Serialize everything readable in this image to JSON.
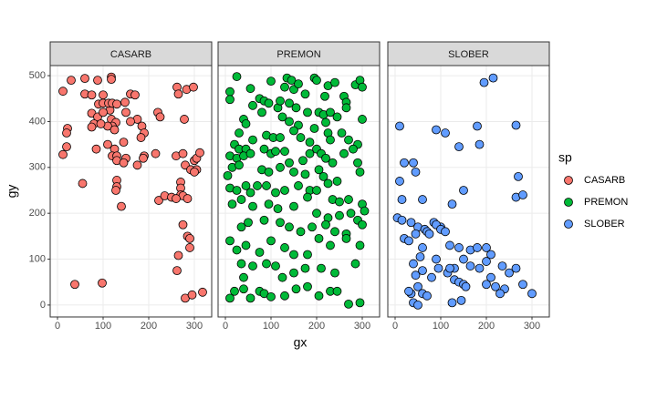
{
  "chart_data": {
    "type": "scatter",
    "x_label": "gx",
    "y_label": "gy",
    "legend_title": "sp",
    "grid": true,
    "legend_position": "right",
    "facet": true,
    "xlim": [
      -16,
      338
    ],
    "ylim": [
      -26,
      522
    ],
    "xticks": [
      0,
      100,
      200,
      300
    ],
    "yticks": [
      0,
      100,
      200,
      300,
      400,
      500
    ],
    "series": [
      {
        "name": "CASARB",
        "color": "#F8766D",
        "x": [
          12,
          30,
          60,
          60,
          88,
          118,
          118,
          22,
          20,
          20,
          12,
          55,
          38,
          98,
          75,
          100,
          115,
          90,
          100,
          112,
          120,
          130,
          75,
          88,
          100,
          118,
          128,
          120,
          110,
          125,
          80,
          75,
          95,
          148,
          150,
          160,
          170,
          175,
          160,
          185,
          190,
          183,
          190,
          188,
          85,
          110,
          125,
          120,
          130,
          130,
          150,
          145,
          145,
          175,
          130,
          130,
          128,
          140,
          220,
          225,
          215,
          262,
          265,
          283,
          298,
          278,
          260,
          275,
          280,
          292,
          300,
          305,
          312,
          305,
          300,
          270,
          270,
          270,
          275,
          285,
          222,
          235,
          250,
          260,
          275,
          285,
          290,
          290,
          265,
          262,
          280,
          295,
          318
        ],
        "y": [
          466,
          490,
          494,
          460,
          490,
          497,
          492,
          385,
          375,
          345,
          328,
          265,
          45,
          48,
          458,
          458,
          425,
          438,
          440,
          440,
          440,
          438,
          418,
          410,
          420,
          405,
          398,
          390,
          390,
          382,
          395,
          388,
          395,
          442,
          420,
          460,
          458,
          405,
          400,
          390,
          375,
          365,
          325,
          320,
          340,
          350,
          340,
          325,
          325,
          315,
          320,
          355,
          310,
          305,
          272,
          258,
          250,
          215,
          420,
          410,
          330,
          475,
          460,
          470,
          475,
          405,
          325,
          330,
          305,
          295,
          315,
          320,
          332,
          295,
          290,
          268,
          255,
          240,
          238,
          232,
          228,
          238,
          235,
          232,
          175,
          150,
          145,
          125,
          108,
          75,
          15,
          22,
          28
        ]
      },
      {
        "name": "PREMON",
        "color": "#00BA38",
        "x": [
          10,
          10,
          25,
          55,
          75,
          85,
          95,
          100,
          130,
          135,
          145,
          150,
          160,
          175,
          195,
          200,
          218,
          225,
          240,
          260,
          265,
          285,
          295,
          300,
          300,
          60,
          80,
          115,
          120,
          140,
          155,
          125,
          140,
          160,
          180,
          205,
          215,
          230,
          245,
          265,
          220,
          195,
          40,
          45,
          30,
          20,
          30,
          45,
          60,
          90,
          105,
          120,
          150,
          165,
          185,
          200,
          225,
          230,
          255,
          270,
          290,
          10,
          25,
          40,
          55,
          85,
          100,
          110,
          130,
          140,
          170,
          185,
          210,
          220,
          235,
          260,
          280,
          290,
          15,
          30,
          80,
          95,
          120,
          150,
          175,
          205,
          215,
          245,
          295,
          5,
          10,
          25,
          45,
          55,
          70,
          90,
          110,
          130,
          160,
          185,
          200,
          225,
          235,
          250,
          270,
          300,
          305,
          15,
          35,
          60,
          95,
          115,
          150,
          180,
          200,
          225,
          250,
          275,
          290,
          300,
          35,
          50,
          85,
          120,
          140,
          165,
          190,
          220,
          240,
          265,
          10,
          25,
          45,
          75,
          100,
          130,
          150,
          180,
          205,
          230,
          265,
          295,
          35,
          40,
          60,
          90,
          110,
          125,
          150,
          175,
          210,
          240,
          285,
          20,
          10,
          40,
          55,
          75,
          85,
          100,
          130,
          155,
          180,
          205,
          230,
          245,
          270,
          295
        ],
        "y": [
          465,
          448,
          498,
          472,
          450,
          445,
          440,
          488,
          475,
          495,
          490,
          470,
          482,
          460,
          495,
          490,
          455,
          478,
          485,
          455,
          442,
          480,
          490,
          475,
          405,
          435,
          420,
          430,
          445,
          440,
          430,
          410,
          400,
          392,
          420,
          420,
          415,
          420,
          410,
          430,
          398,
          385,
          405,
          395,
          375,
          350,
          340,
          340,
          360,
          370,
          365,
          365,
          380,
          365,
          355,
          340,
          375,
          360,
          375,
          360,
          350,
          325,
          320,
          325,
          330,
          340,
          330,
          335,
          335,
          310,
          315,
          330,
          330,
          320,
          310,
          330,
          340,
          310,
          300,
          305,
          295,
          290,
          300,
          290,
          285,
          295,
          280,
          270,
          290,
          282,
          255,
          250,
          260,
          245,
          260,
          260,
          245,
          250,
          260,
          250,
          250,
          265,
          230,
          225,
          230,
          220,
          205,
          220,
          230,
          215,
          220,
          210,
          215,
          235,
          200,
          190,
          195,
          200,
          185,
          175,
          170,
          180,
          185,
          180,
          170,
          160,
          170,
          175,
          160,
          155,
          140,
          120,
          130,
          115,
          140,
          125,
          110,
          110,
          145,
          130,
          145,
          130,
          90,
          60,
          85,
          90,
          85,
          60,
          70,
          80,
          80,
          70,
          90,
          30,
          15,
          35,
          15,
          30,
          25,
          18,
          20,
          35,
          40,
          20,
          30,
          30,
          2,
          5
        ]
      },
      {
        "name": "SLOBER",
        "color": "#619CFF",
        "x": [
          195,
          215,
          10,
          90,
          110,
          140,
          180,
          185,
          265,
          10,
          20,
          40,
          15,
          45,
          60,
          125,
          150,
          270,
          265,
          280,
          5,
          15,
          35,
          50,
          85,
          100,
          120,
          140,
          165,
          180,
          200,
          210,
          20,
          30,
          45,
          65,
          70,
          75,
          90,
          100,
          110,
          60,
          55,
          90,
          95,
          130,
          150,
          165,
          185,
          200,
          235,
          250,
          265,
          280,
          300,
          210,
          220,
          240,
          230,
          200,
          40,
          45,
          50,
          60,
          70,
          35,
          60,
          80,
          115,
          120,
          130,
          140,
          150,
          125,
          145,
          155,
          40,
          50,
          30
        ],
        "y": [
          485,
          495,
          390,
          382,
          375,
          345,
          390,
          350,
          392,
          270,
          310,
          310,
          230,
          290,
          230,
          220,
          250,
          280,
          235,
          240,
          190,
          185,
          180,
          170,
          180,
          170,
          130,
          125,
          120,
          125,
          125,
          110,
          145,
          140,
          155,
          165,
          160,
          155,
          175,
          165,
          160,
          125,
          105,
          100,
          80,
          80,
          100,
          85,
          80,
          95,
          85,
          70,
          80,
          45,
          25,
          60,
          40,
          35,
          25,
          45,
          90,
          65,
          40,
          25,
          20,
          25,
          75,
          60,
          70,
          80,
          55,
          50,
          45,
          5,
          10,
          40,
          5,
          0,
          30
        ]
      }
    ]
  }
}
